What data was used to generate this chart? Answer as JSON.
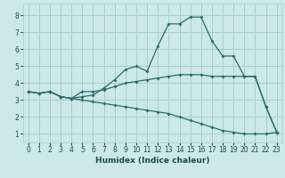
{
  "xlabel": "Humidex (Indice chaleur)",
  "bg_color": "#cce8e8",
  "grid_color": "#aacccc",
  "line_color": "#2a6b6b",
  "xlim": [
    -0.5,
    23.5
  ],
  "ylim": [
    0.5,
    8.7
  ],
  "xticks": [
    0,
    1,
    2,
    3,
    4,
    5,
    6,
    7,
    8,
    9,
    10,
    11,
    12,
    13,
    14,
    15,
    16,
    17,
    18,
    19,
    20,
    21,
    22,
    23
  ],
  "yticks": [
    1,
    2,
    3,
    4,
    5,
    6,
    7,
    8
  ],
  "line1_x": [
    0,
    1,
    2,
    3,
    4,
    5,
    6,
    7,
    8,
    9,
    10,
    11,
    12,
    13,
    14,
    15,
    16,
    17,
    18,
    19,
    20,
    21,
    22,
    23
  ],
  "line1_y": [
    3.5,
    3.4,
    3.5,
    3.2,
    3.1,
    3.2,
    3.3,
    3.7,
    4.2,
    4.8,
    5.0,
    4.7,
    6.2,
    7.5,
    7.5,
    7.9,
    7.9,
    6.5,
    5.6,
    5.6,
    4.4,
    4.4,
    2.6,
    1.1
  ],
  "line2_x": [
    0,
    1,
    2,
    3,
    4,
    5,
    6,
    7,
    8,
    9,
    10,
    11,
    12,
    13,
    14,
    15,
    16,
    17,
    18,
    19,
    20,
    21,
    22,
    23
  ],
  "line2_y": [
    3.5,
    3.4,
    3.5,
    3.2,
    3.1,
    3.5,
    3.5,
    3.6,
    3.8,
    4.0,
    4.1,
    4.2,
    4.3,
    4.4,
    4.5,
    4.5,
    4.5,
    4.4,
    4.4,
    4.4,
    4.4,
    4.4,
    2.6,
    1.1
  ],
  "line3_x": [
    0,
    1,
    2,
    3,
    4,
    5,
    6,
    7,
    8,
    9,
    10,
    11,
    12,
    13,
    14,
    15,
    16,
    17,
    18,
    19,
    20,
    21,
    22,
    23
  ],
  "line3_y": [
    3.5,
    3.4,
    3.5,
    3.2,
    3.1,
    3.0,
    2.9,
    2.8,
    2.7,
    2.6,
    2.5,
    2.4,
    2.3,
    2.2,
    2.0,
    1.8,
    1.6,
    1.4,
    1.2,
    1.1,
    1.0,
    1.0,
    1.0,
    1.1
  ],
  "tick_fontsize": 5.5,
  "xlabel_fontsize": 6.5
}
